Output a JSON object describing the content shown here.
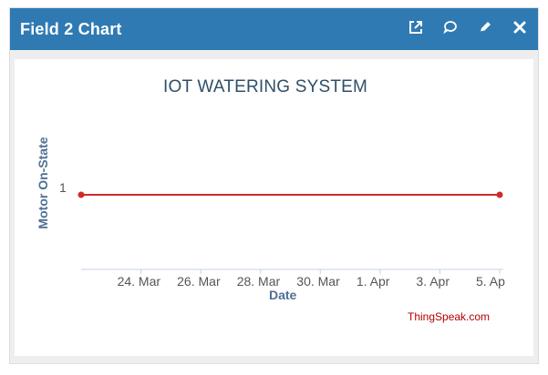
{
  "widget": {
    "title": "Field 2 Chart",
    "actions": [
      {
        "name": "open-external-icon"
      },
      {
        "name": "comment-icon"
      },
      {
        "name": "edit-icon"
      },
      {
        "name": "close-icon"
      }
    ]
  },
  "chart_data": {
    "type": "line",
    "title": "IOT WATERING SYSTEM",
    "xlabel": "Date",
    "ylabel": "Motor On-State",
    "x_ticks": [
      "24. Mar",
      "26. Mar",
      "28. Mar",
      "30. Mar",
      "1. Apr",
      "3. Apr",
      "5. Ap"
    ],
    "y_ticks": [
      "1"
    ],
    "x_domain": [
      "2024-03-22",
      "2024-04-05"
    ],
    "series": [
      {
        "points": [
          {
            "x": "2024-03-22",
            "y": 1
          },
          {
            "x": "2024-04-05",
            "y": 1
          }
        ],
        "color": "#d12a2a"
      }
    ],
    "watermark": "ThingSpeak.com"
  },
  "colors": {
    "header": "#2f7ab3",
    "line": "#d12a2a"
  }
}
